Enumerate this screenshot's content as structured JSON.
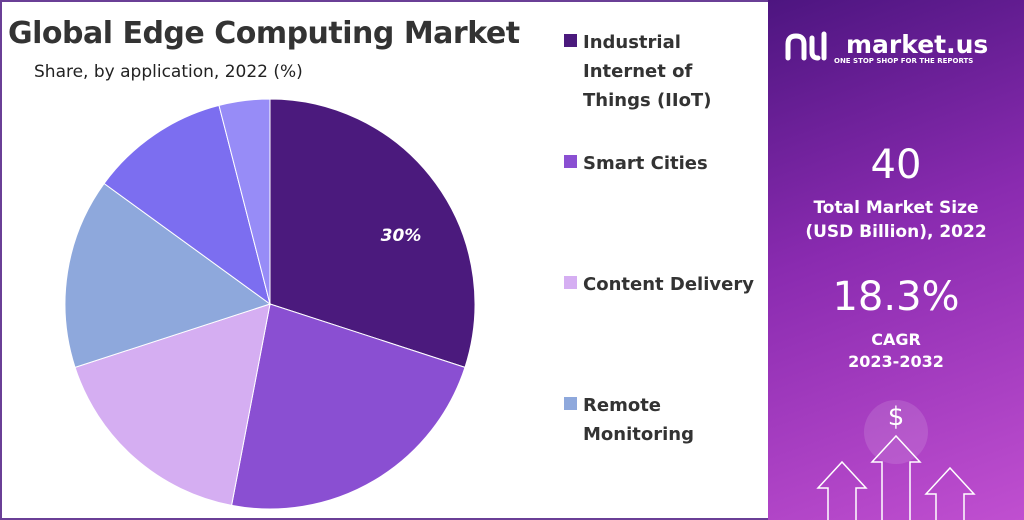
{
  "chart_data": {
    "type": "pie",
    "title": "Global Edge Computing Market",
    "subtitle": "Share, by application, 2022 (%)",
    "categories": [
      "Industrial Internet of Things (IIoT)",
      "Smart Cities",
      "Content Delivery",
      "Remote Monitoring",
      null,
      null
    ],
    "values": [
      30,
      23,
      17,
      15,
      11,
      4
    ],
    "value_labels": [
      "30%",
      null,
      null,
      null,
      null,
      null
    ],
    "colors": [
      "#4b1a7d",
      "#8a4fd2",
      "#d5aef2",
      "#8ea8dc",
      "#7c6ef0",
      "#978cf7"
    ]
  },
  "panel": {
    "brand": "market.us",
    "tagline": "ONE STOP SHOP FOR THE REPORTS",
    "market_size": 40,
    "market_size_label": [
      "Total Market Size",
      "(USD Billion), 2022"
    ],
    "cagr": "18.3%",
    "cagr_label": [
      "CAGR",
      "2023-2032"
    ],
    "icon": "$"
  }
}
